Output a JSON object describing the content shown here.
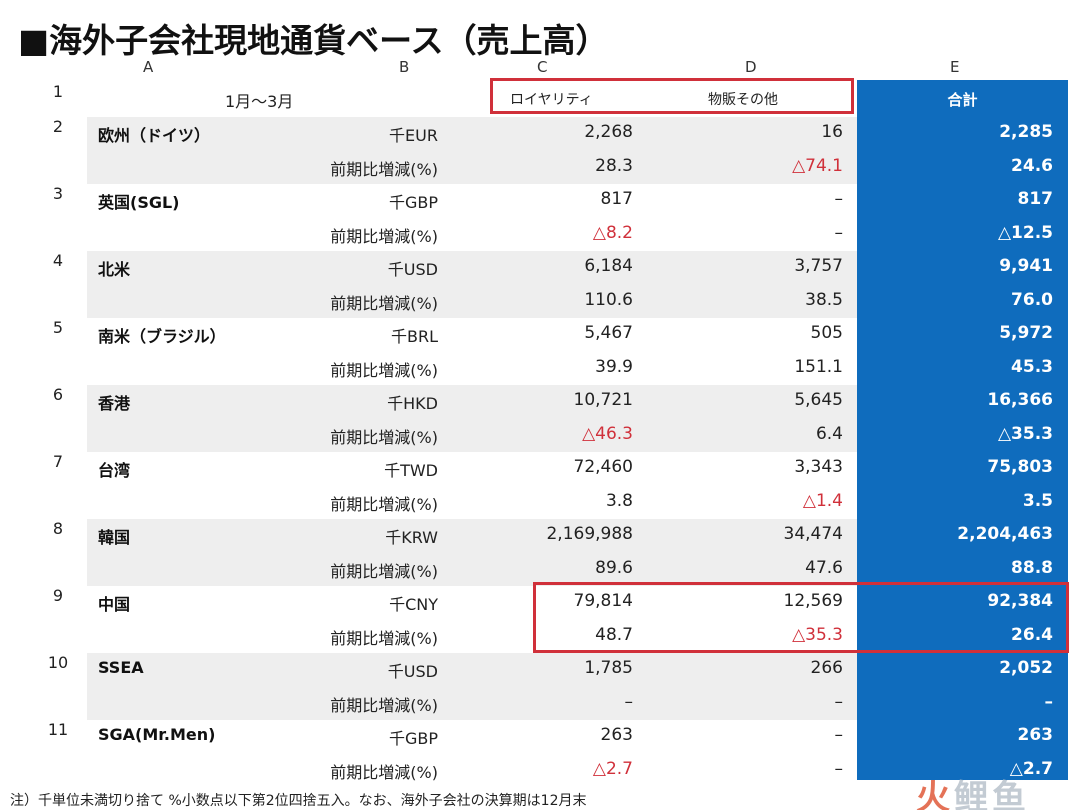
{
  "title": "■海外子会社現地通貨ベース（売上高）",
  "columns": {
    "a": "A",
    "b": "B",
    "c": "C",
    "d": "D",
    "e": "E"
  },
  "period": "1月～3月",
  "headers": {
    "royalty": "ロイヤリティ",
    "merch": "物販その他",
    "total": "合計"
  },
  "colors": {
    "accent": "#0f6cbd",
    "highlight": "#d0303a",
    "band": "#eeeeee"
  },
  "rows": [
    {
      "num": "2",
      "region": "欧州（ドイツ）",
      "unit": "千EUR",
      "c": "2,268",
      "d": "16",
      "e": "2,285",
      "pct_label": "前期比増減(%)",
      "pc": "28.3",
      "pd": "△74.1",
      "pe": "24.6"
    },
    {
      "num": "3",
      "region": "英国(SGL)",
      "unit": "千GBP",
      "c": "817",
      "d": "–",
      "e": "817",
      "pct_label": "前期比増減(%)",
      "pc": "△8.2",
      "pd": "–",
      "pe": "△12.5"
    },
    {
      "num": "4",
      "region": "北米",
      "unit": "千USD",
      "c": "6,184",
      "d": "3,757",
      "e": "9,941",
      "pct_label": "前期比増減(%)",
      "pc": "110.6",
      "pd": "38.5",
      "pe": "76.0"
    },
    {
      "num": "5",
      "region": "南米（ブラジル）",
      "unit": "千BRL",
      "c": "5,467",
      "d": "505",
      "e": "5,972",
      "pct_label": "前期比増減(%)",
      "pc": "39.9",
      "pd": "151.1",
      "pe": "45.3"
    },
    {
      "num": "6",
      "region": "香港",
      "unit": "千HKD",
      "c": "10,721",
      "d": "5,645",
      "e": "16,366",
      "pct_label": "前期比増減(%)",
      "pc": "△46.3",
      "pd": "6.4",
      "pe": "△35.3"
    },
    {
      "num": "7",
      "region": "台湾",
      "unit": "千TWD",
      "c": "72,460",
      "d": "3,343",
      "e": "75,803",
      "pct_label": "前期比増減(%)",
      "pc": "3.8",
      "pd": "△1.4",
      "pe": "3.5"
    },
    {
      "num": "8",
      "region": "韓国",
      "unit": "千KRW",
      "c": "2,169,988",
      "d": "34,474",
      "e": "2,204,463",
      "pct_label": "前期比増減(%)",
      "pc": "89.6",
      "pd": "47.6",
      "pe": "88.8"
    },
    {
      "num": "9",
      "region": "中国",
      "unit": "千CNY",
      "c": "79,814",
      "d": "12,569",
      "e": "92,384",
      "pct_label": "前期比増減(%)",
      "pc": "48.7",
      "pd": "△35.3",
      "pe": "26.4"
    },
    {
      "num": "10",
      "region": "SSEA",
      "unit": "千USD",
      "c": "1,785",
      "d": "266",
      "e": "2,052",
      "pct_label": "前期比増減(%)",
      "pc": "–",
      "pd": "–",
      "pe": "–"
    },
    {
      "num": "11",
      "region": "SGA(Mr.Men)",
      "unit": "千GBP",
      "c": "263",
      "d": "–",
      "e": "263",
      "pct_label": "前期比増減(%)",
      "pc": "△2.7",
      "pd": "–",
      "pe": "△2.7"
    }
  ],
  "note": "注）千単位未満切り捨て %小数点以下第2位四捨五入。なお、海外子会社の決算期は12月末",
  "watermark": {
    "fire": "火",
    "rest": "鲤鱼"
  }
}
